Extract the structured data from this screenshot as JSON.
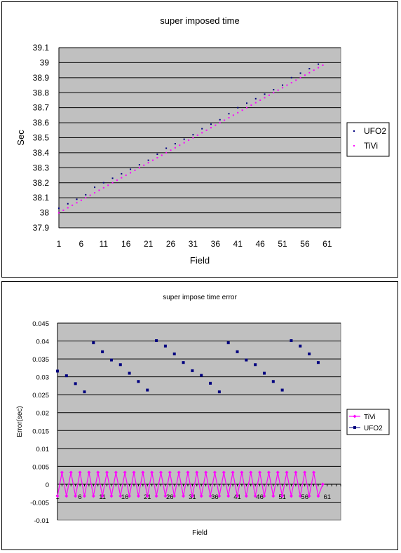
{
  "chart_data": [
    {
      "type": "scatter",
      "title": "super imposed time",
      "xlabel": "Field",
      "ylabel": "Sec",
      "xlim": [
        1,
        64
      ],
      "ylim": [
        37.9,
        39.1
      ],
      "yticks": [
        "37.9",
        "38",
        "38.1",
        "38.2",
        "38.3",
        "38.4",
        "38.5",
        "38.6",
        "38.7",
        "38.8",
        "38.9",
        "39",
        "39.1"
      ],
      "xticks": [
        "1",
        "6",
        "11",
        "16",
        "21",
        "26",
        "31",
        "36",
        "41",
        "46",
        "51",
        "56",
        "61"
      ],
      "grid": true,
      "legend": "right",
      "series": [
        {
          "name": "UFO2",
          "color": "#00007f",
          "marker": "dot",
          "x": [
            1,
            3,
            5,
            7,
            9,
            11,
            13,
            15,
            17,
            19,
            21,
            23,
            25,
            27,
            29,
            31,
            33,
            35,
            37,
            39,
            41,
            43,
            45,
            47,
            49,
            51,
            53,
            55,
            57,
            59
          ],
          "y": [
            38.03,
            38.06,
            38.09,
            38.12,
            38.17,
            38.2,
            38.23,
            38.26,
            38.29,
            38.32,
            38.35,
            38.39,
            38.43,
            38.46,
            38.49,
            38.52,
            38.56,
            38.59,
            38.62,
            38.66,
            38.7,
            38.73,
            38.76,
            38.79,
            38.82,
            38.85,
            38.9,
            38.93,
            38.96,
            38.99
          ]
        },
        {
          "name": "TiVi",
          "color": "#ff00ff",
          "marker": "dot",
          "x": [
            1,
            2,
            3,
            4,
            5,
            6,
            7,
            8,
            9,
            10,
            11,
            12,
            13,
            14,
            15,
            16,
            17,
            18,
            19,
            20,
            21,
            22,
            23,
            24,
            25,
            26,
            27,
            28,
            29,
            30,
            31,
            32,
            33,
            34,
            35,
            36,
            37,
            38,
            39,
            40,
            41,
            42,
            43,
            44,
            45,
            46,
            47,
            48,
            49,
            50,
            51,
            52,
            53,
            54,
            55,
            56,
            57,
            58,
            59,
            60
          ],
          "y": [
            38.0,
            38.0167,
            38.0333,
            38.05,
            38.0667,
            38.0833,
            38.1,
            38.1167,
            38.1333,
            38.15,
            38.1667,
            38.1833,
            38.2,
            38.2167,
            38.2333,
            38.25,
            38.2667,
            38.2833,
            38.3,
            38.3167,
            38.3333,
            38.35,
            38.3667,
            38.3833,
            38.4,
            38.4167,
            38.4333,
            38.45,
            38.4667,
            38.4833,
            38.5,
            38.5167,
            38.5333,
            38.55,
            38.5667,
            38.5833,
            38.6,
            38.6167,
            38.6333,
            38.65,
            38.6667,
            38.6833,
            38.7,
            38.7167,
            38.7333,
            38.75,
            38.7667,
            38.7833,
            38.8,
            38.8167,
            38.8333,
            38.85,
            38.8667,
            38.8833,
            38.9,
            38.9167,
            38.9333,
            38.95,
            38.9667,
            38.9833
          ]
        }
      ]
    },
    {
      "type": "line",
      "title": "super impose time error",
      "xlabel": "Field",
      "ylabel": "Error(sec)",
      "xlim": [
        1,
        64
      ],
      "ylim": [
        -0.01,
        0.045
      ],
      "yticks": [
        "-0.01",
        "-0.005",
        "0",
        "0.005",
        "0.01",
        "0.015",
        "0.02",
        "0.025",
        "0.03",
        "0.035",
        "0.04",
        "0.045"
      ],
      "xticks": [
        "1",
        "6",
        "11",
        "16",
        "21",
        "26",
        "31",
        "36",
        "41",
        "46",
        "51",
        "56",
        "61"
      ],
      "grid": true,
      "legend": "right",
      "series": [
        {
          "name": "TiVi",
          "color": "#ff00ff",
          "marker": "diamond-line",
          "x": [
            1,
            2,
            3,
            4,
            5,
            6,
            7,
            8,
            9,
            10,
            11,
            12,
            13,
            14,
            15,
            16,
            17,
            18,
            19,
            20,
            21,
            22,
            23,
            24,
            25,
            26,
            27,
            28,
            29,
            30,
            31,
            32,
            33,
            34,
            35,
            36,
            37,
            38,
            39,
            40,
            41,
            42,
            43,
            44,
            45,
            46,
            47,
            48,
            49,
            50,
            51,
            52,
            53,
            54,
            55,
            56,
            57,
            58,
            59,
            60
          ],
          "y": [
            -0.0033,
            0.0033,
            -0.0033,
            0.0033,
            -0.0033,
            0.0033,
            -0.0033,
            0.0033,
            -0.0033,
            0.0033,
            -0.0033,
            0.0033,
            -0.0033,
            0.0033,
            -0.0033,
            0.0033,
            -0.0033,
            0.0033,
            -0.0033,
            0.0033,
            -0.0033,
            0.0033,
            -0.0033,
            0.0033,
            -0.0033,
            0.0033,
            -0.0033,
            0.0033,
            -0.0033,
            0.0033,
            -0.0033,
            0.0033,
            -0.0033,
            0.0033,
            -0.0033,
            0.0033,
            -0.0033,
            0.0033,
            -0.0033,
            0.0033,
            -0.0033,
            0.0033,
            -0.0033,
            0.0033,
            -0.0033,
            0.0033,
            -0.0033,
            0.0033,
            -0.0033,
            0.0033,
            -0.0033,
            0.0033,
            -0.0033,
            0.0033,
            -0.0033,
            0.0033,
            -0.0033,
            0.0033,
            -0.0033,
            0.0
          ]
        },
        {
          "name": "UFO2",
          "color": "#00007f",
          "marker": "square",
          "x": [
            1,
            3,
            5,
            7,
            9,
            11,
            13,
            15,
            17,
            19,
            21,
            23,
            25,
            27,
            29,
            31,
            33,
            35,
            37,
            39,
            41,
            43,
            45,
            47,
            49,
            51,
            53,
            55,
            57,
            59
          ],
          "y": [
            0.0316,
            0.0303,
            0.0281,
            0.0258,
            0.0395,
            0.037,
            0.0347,
            0.0334,
            0.031,
            0.0287,
            0.0263,
            0.0401,
            0.0386,
            0.0364,
            0.034,
            0.0317,
            0.0304,
            0.0282,
            0.0258,
            0.0395,
            0.037,
            0.0347,
            0.0334,
            0.031,
            0.0287,
            0.0263,
            0.0401,
            0.0386,
            0.0364,
            0.034
          ]
        }
      ]
    }
  ]
}
